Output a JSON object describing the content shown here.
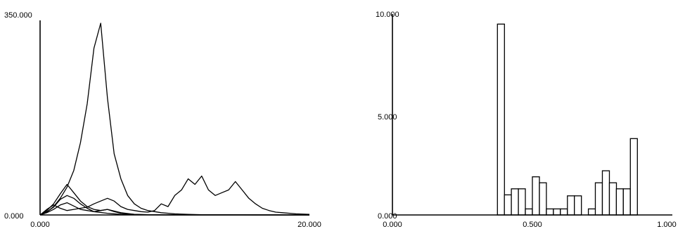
{
  "chart_data": [
    {
      "type": "line",
      "title": "",
      "xlabel": "",
      "ylabel": "",
      "xlim": [
        0,
        20
      ],
      "ylim": [
        0,
        350
      ],
      "grid": false,
      "x_ticks": [
        "0.000",
        "20.000"
      ],
      "y_ticks": [
        "0.000",
        "350.000"
      ],
      "series": [
        {
          "x": [
            0,
            0.5,
            1.0,
            1.5,
            2.0,
            2.5,
            3.0,
            3.5,
            4.0,
            4.5,
            5.0,
            5.5,
            6.0,
            6.5,
            7.0,
            7.5,
            8.0,
            9.0,
            10.0,
            11.0,
            12.0,
            13.0,
            14.0,
            15.0,
            16.0,
            17.0,
            18.0,
            19.0,
            20.0
          ],
          "y": [
            0,
            5,
            15,
            30,
            50,
            80,
            130,
            200,
            300,
            345,
            210,
            110,
            65,
            35,
            20,
            12,
            8,
            4,
            2,
            1,
            0.5,
            0.3,
            0.2,
            0.1,
            0,
            0,
            0,
            0,
            0
          ]
        },
        {
          "x": [
            0,
            0.5,
            1.0,
            1.5,
            2.0,
            2.5,
            3.0,
            3.5,
            4.0,
            4.5,
            5.0,
            5.5,
            6.0,
            6.5,
            7.0,
            7.5,
            8.0,
            8.5,
            9.0,
            9.5,
            10.0,
            10.5,
            11.0,
            11.5,
            12.0,
            12.5,
            13.0,
            13.5,
            14.0,
            14.5,
            15.0,
            15.5,
            16.0,
            16.5,
            17.0,
            17.5,
            18.0,
            19.0,
            20.0
          ],
          "y": [
            0,
            10,
            18,
            12,
            8,
            10,
            12,
            14,
            20,
            25,
            30,
            25,
            15,
            10,
            8,
            6,
            5,
            8,
            20,
            15,
            35,
            45,
            65,
            55,
            70,
            45,
            35,
            40,
            45,
            60,
            45,
            30,
            20,
            12,
            8,
            5,
            4,
            2,
            1
          ]
        },
        {
          "x": [
            0,
            0.5,
            1.0,
            1.5,
            2.0,
            2.5,
            3.0,
            3.5,
            4.0,
            4.5,
            5.0,
            5.5,
            6.0,
            7.0,
            8.0,
            9.0,
            10.0,
            20.0
          ],
          "y": [
            0,
            8,
            20,
            38,
            55,
            40,
            25,
            15,
            10,
            8,
            10,
            6,
            3,
            1,
            0.5,
            0.2,
            0,
            0
          ]
        },
        {
          "x": [
            0,
            0.5,
            1.0,
            1.5,
            2.0,
            2.5,
            3.0,
            3.5,
            4.0,
            5.0,
            6.0,
            7.0,
            8.0,
            9.0,
            10.0,
            20.0
          ],
          "y": [
            0,
            6,
            14,
            28,
            35,
            30,
            20,
            12,
            6,
            3,
            1,
            0.5,
            0.2,
            0,
            0,
            0
          ]
        },
        {
          "x": [
            0,
            0.5,
            1.0,
            1.5,
            2.0,
            2.5,
            3.0,
            3.5,
            4.0,
            4.5,
            5.0,
            6.0,
            7.0,
            8.0,
            20.0
          ],
          "y": [
            0,
            4,
            10,
            18,
            22,
            16,
            10,
            8,
            6,
            8,
            10,
            4,
            1,
            0.5,
            0
          ]
        }
      ]
    },
    {
      "type": "bar",
      "title": "",
      "xlabel": "",
      "ylabel": "",
      "xlim": [
        0,
        1
      ],
      "ylim": [
        0,
        10
      ],
      "grid": false,
      "x_ticks": [
        "0.000",
        "0.500",
        "1.000"
      ],
      "y_ticks": [
        "0.000",
        "5.000",
        "10.000"
      ],
      "bin_width": 0.025,
      "bins": [
        {
          "x": 0.375,
          "value": 9.5
        },
        {
          "x": 0.4,
          "value": 1.0
        },
        {
          "x": 0.425,
          "value": 1.3
        },
        {
          "x": 0.45,
          "value": 1.3
        },
        {
          "x": 0.475,
          "value": 0.3
        },
        {
          "x": 0.5,
          "value": 1.9
        },
        {
          "x": 0.525,
          "value": 1.6
        },
        {
          "x": 0.55,
          "value": 0.3
        },
        {
          "x": 0.575,
          "value": 0.3
        },
        {
          "x": 0.6,
          "value": 0.3
        },
        {
          "x": 0.625,
          "value": 0.95
        },
        {
          "x": 0.65,
          "value": 0.95
        },
        {
          "x": 0.7,
          "value": 0.3
        },
        {
          "x": 0.725,
          "value": 1.6
        },
        {
          "x": 0.75,
          "value": 2.2
        },
        {
          "x": 0.775,
          "value": 1.6
        },
        {
          "x": 0.8,
          "value": 1.3
        },
        {
          "x": 0.825,
          "value": 1.3
        },
        {
          "x": 0.85,
          "value": 3.8
        }
      ]
    }
  ]
}
